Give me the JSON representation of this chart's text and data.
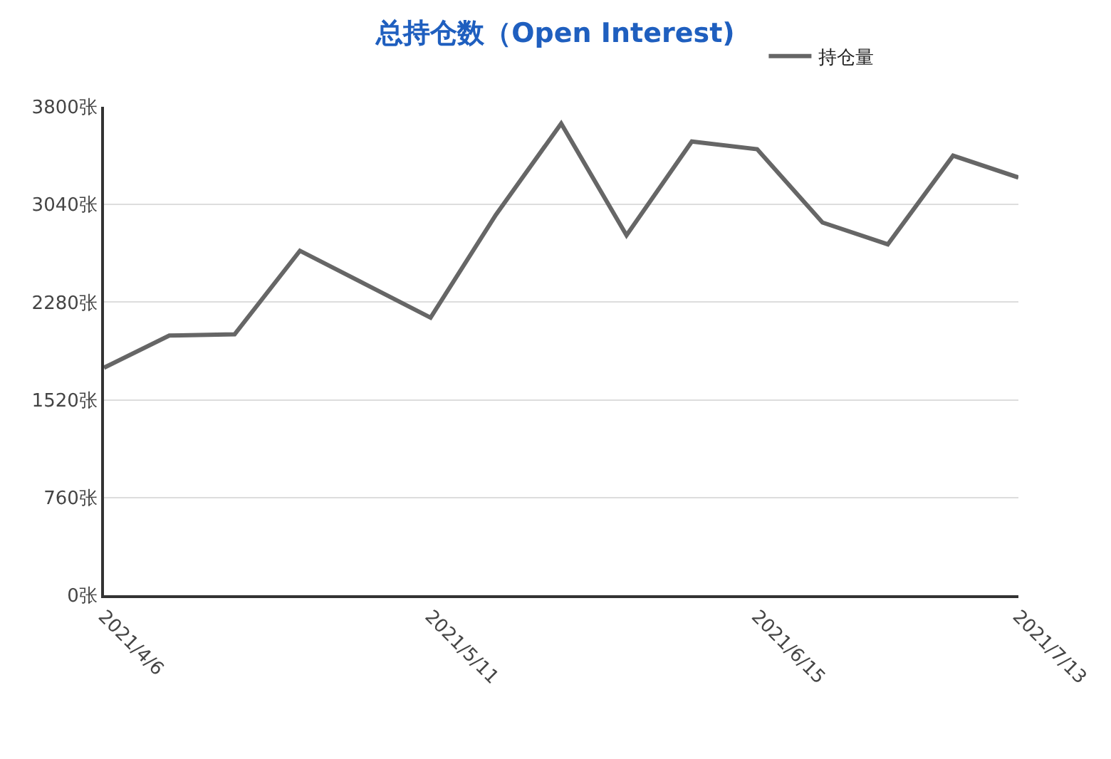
{
  "chart_data": {
    "type": "line",
    "title": "总持仓数（Open Interest)",
    "x": [
      "2021-04-06",
      "2021-04-13",
      "2021-04-20",
      "2021-04-27",
      "2021-05-04",
      "2021-05-11",
      "2021-05-18",
      "2021-05-25",
      "2021-06-01",
      "2021-06-08",
      "2021-06-15",
      "2021-06-22",
      "2021-06-29",
      "2021-07-06",
      "2021-07-13"
    ],
    "series": [
      {
        "name": "持仓量",
        "color": "#666666",
        "values": [
          1770,
          2020,
          2030,
          2680,
          2420,
          2160,
          2960,
          3670,
          2800,
          3530,
          3470,
          2900,
          2730,
          3420,
          3250
        ]
      }
    ],
    "xlim": [
      "2021-04-06",
      "2021-07-13"
    ],
    "xticks": [
      {
        "value": "2021-04-06",
        "label": "2021/4/6"
      },
      {
        "value": "2021-05-11",
        "label": "2021/5/11"
      },
      {
        "value": "2021-06-15",
        "label": "2021/6/15"
      },
      {
        "value": "2021-07-13",
        "label": "2021/7/13"
      }
    ],
    "ylim": [
      0,
      3800
    ],
    "yticks": [
      {
        "value": 0,
        "label": "0张"
      },
      {
        "value": 760,
        "label": "760张"
      },
      {
        "value": 1520,
        "label": "1520张"
      },
      {
        "value": 2280,
        "label": "2280张"
      },
      {
        "value": 3040,
        "label": "3040张"
      },
      {
        "value": 3800,
        "label": "3800张"
      }
    ],
    "grid": "y",
    "legend": "top right",
    "marker": "none",
    "line_style": "solid"
  }
}
